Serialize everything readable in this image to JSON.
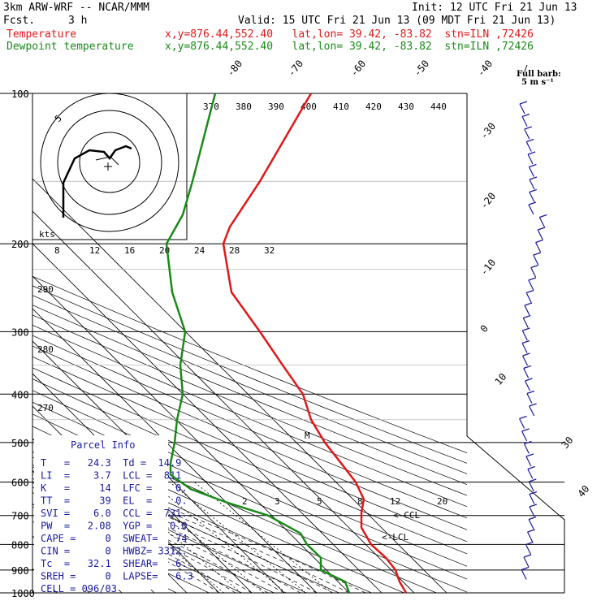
{
  "header": {
    "model": "3km ARW-WRF -- NCAR/MMM",
    "init": "Init: 12 UTC Fri 21 Jun 13",
    "fcst_label": "Fcst.",
    "fcst_value": "3 h",
    "valid": "Valid: 15 UTC Fri 21 Jun 13 (09 MDT Fri 21 Jun 13)",
    "temp_label": "Temperature",
    "temp_loc": "x,y=876.44,552.40   lat,lon= 39.42, -83.82  stn=ILN ,72426",
    "dew_label": "Dewpoint temperature",
    "dew_loc": "x,y=876.44,552.40   lat,lon= 39.42, -83.82  stn=ILN ,72426",
    "fullbarb_1": "Full barb:",
    "fullbarb_2": "5 m s⁻¹"
  },
  "colors": {
    "temperature": "#e01818",
    "dewpoint": "#1a8a1a",
    "parcel_info": "#1a1aa0",
    "barbs": "#1a1aa0"
  },
  "parcel_info": {
    "title": "Parcel Info",
    "rows": [
      "T   =   24.3  Td =  14.9",
      "LI  =    3.7  LCL =  811",
      "K   =     14  LFC =    0.",
      "TT  =     39  EL  =    0.",
      "SVI =    6.0  CCL =  731.",
      "PW  =   2.08  YGP =   0.0",
      "CAPE =     0  SWEAT=   74",
      "CIN =      0  HWBZ= 3312.",
      "Tc  =   32.1  SHEAR=   6.",
      "SREH =     0  LAPSE=   6.3",
      "CELL = 096/03"
    ]
  },
  "chart_data": {
    "type": "line",
    "title": "",
    "ylabel": "",
    "pressure_levels": [
      "100",
      "200",
      "300",
      "400",
      "500",
      "600",
      "700",
      "800",
      "900",
      "1000"
    ],
    "isotherm_labels": [
      "-80",
      "-70",
      "-60",
      "-50",
      "-40",
      "-30",
      "-20",
      "-10",
      "0",
      "10",
      "30",
      "40"
    ],
    "theta_labels": [
      "370",
      "380",
      "390",
      "400",
      "410",
      "420",
      "430",
      "440"
    ],
    "theta_left_labels": [
      "290",
      "280",
      "270"
    ],
    "hodo_speed_labels": [
      "8",
      "12",
      "16",
      "20",
      "24",
      "28",
      "32"
    ],
    "hodo_units": "kts",
    "hodo_ring_label": "5",
    "mixing_ratio_labels": [
      "2",
      "3",
      "5",
      "8",
      "12",
      "20"
    ],
    "annotations": [
      "<-CCL",
      "<-LCL",
      "M"
    ],
    "series": [
      {
        "name": "Temperature",
        "points": [
          [
            100,
            -66
          ],
          [
            150,
            -58
          ],
          [
            200,
            -56
          ],
          [
            250,
            -45
          ],
          [
            300,
            -34
          ],
          [
            350,
            -24
          ],
          [
            400,
            -16
          ],
          [
            450,
            -10
          ],
          [
            500,
            -6
          ],
          [
            550,
            -2
          ],
          [
            600,
            3
          ],
          [
            650,
            7
          ],
          [
            700,
            8
          ],
          [
            750,
            11
          ],
          [
            800,
            14
          ],
          [
            850,
            17
          ],
          [
            900,
            20
          ],
          [
            950,
            23
          ],
          [
            1000,
            24.3
          ]
        ]
      },
      {
        "name": "Dewpoint temperature",
        "points": [
          [
            100,
            -80
          ],
          [
            150,
            -75
          ],
          [
            200,
            -72
          ],
          [
            250,
            -61
          ],
          [
            300,
            -50
          ],
          [
            350,
            -44
          ],
          [
            400,
            -34
          ],
          [
            450,
            -29
          ],
          [
            500,
            -25
          ],
          [
            550,
            -21
          ],
          [
            600,
            -16
          ],
          [
            650,
            -10
          ],
          [
            700,
            -3
          ],
          [
            750,
            5
          ],
          [
            800,
            8
          ],
          [
            850,
            10
          ],
          [
            900,
            11
          ],
          [
            950,
            14
          ],
          [
            1000,
            14.9
          ]
        ]
      }
    ],
    "grid": true
  },
  "notes_hodo": "hodograph inset upper left"
}
